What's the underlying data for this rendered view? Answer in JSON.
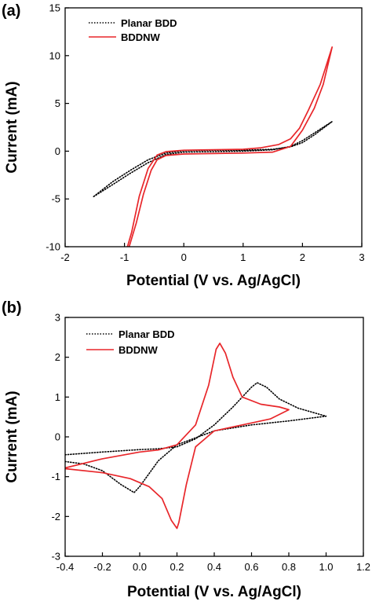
{
  "chart_data": [
    {
      "type": "line",
      "panel_label": "(a)",
      "xlabel": "Potential (V vs. Ag/AgCl)",
      "ylabel": "Current (mA)",
      "xlim": [
        -2,
        3
      ],
      "ylim": [
        -10,
        15
      ],
      "xticks": [
        -2,
        -1,
        0,
        1,
        2,
        3
      ],
      "yticks": [
        -10,
        -5,
        0,
        5,
        10,
        15
      ],
      "legend_position": "top-left",
      "grid": false,
      "series": [
        {
          "name": "Planar BDD",
          "color": "#000000",
          "style": "dotted",
          "points": [
            [
              -1.52,
              -4.75
            ],
            [
              -1.2,
              -3.5
            ],
            [
              -0.9,
              -2.3
            ],
            [
              -0.6,
              -1.2
            ],
            [
              -0.3,
              -0.35
            ],
            [
              0.0,
              -0.1
            ],
            [
              0.5,
              -0.05
            ],
            [
              1.0,
              0.0
            ],
            [
              1.5,
              0.15
            ],
            [
              1.8,
              0.5
            ],
            [
              2.0,
              1.1
            ],
            [
              2.2,
              1.9
            ],
            [
              2.5,
              3.1
            ],
            [
              2.2,
              1.7
            ],
            [
              2.0,
              0.9
            ],
            [
              1.8,
              0.45
            ],
            [
              1.5,
              0.2
            ],
            [
              1.0,
              0.1
            ],
            [
              0.5,
              0.1
            ],
            [
              0.0,
              0.05
            ],
            [
              -0.3,
              -0.2
            ],
            [
              -0.6,
              -0.9
            ],
            [
              -0.9,
              -2.0
            ],
            [
              -1.2,
              -3.2
            ],
            [
              -1.52,
              -4.75
            ]
          ]
        },
        {
          "name": "BDDNW",
          "color": "#e8262a",
          "style": "solid",
          "points": [
            [
              -0.92,
              -10
            ],
            [
              -0.8,
              -7.5
            ],
            [
              -0.68,
              -4.5
            ],
            [
              -0.55,
              -2.0
            ],
            [
              -0.45,
              -0.9
            ],
            [
              -0.3,
              -0.45
            ],
            [
              0.0,
              -0.3
            ],
            [
              0.5,
              -0.25
            ],
            [
              1.0,
              -0.2
            ],
            [
              1.5,
              -0.1
            ],
            [
              1.8,
              0.5
            ],
            [
              2.0,
              2.2
            ],
            [
              2.2,
              4.5
            ],
            [
              2.35,
              7.0
            ],
            [
              2.5,
              10.9
            ],
            [
              2.3,
              7.0
            ],
            [
              2.1,
              4.3
            ],
            [
              1.95,
              2.4
            ],
            [
              1.8,
              1.3
            ],
            [
              1.6,
              0.7
            ],
            [
              1.3,
              0.35
            ],
            [
              1.0,
              0.2
            ],
            [
              0.5,
              0.15
            ],
            [
              0.0,
              0.1
            ],
            [
              -0.3,
              -0.05
            ],
            [
              -0.45,
              -0.4
            ],
            [
              -0.6,
              -1.8
            ],
            [
              -0.75,
              -4.7
            ],
            [
              -0.88,
              -8.5
            ],
            [
              -0.95,
              -10
            ]
          ]
        }
      ]
    },
    {
      "type": "line",
      "panel_label": "(b)",
      "xlabel": "Potential (V vs. Ag/AgCl)",
      "ylabel": "Current (mA)",
      "xlim": [
        -0.4,
        1.2
      ],
      "ylim": [
        -3,
        3
      ],
      "xticks": [
        -0.4,
        -0.2,
        0.0,
        0.2,
        0.4,
        0.6,
        0.8,
        1.0,
        1.2
      ],
      "xtick_labels": [
        "-0.4",
        "-0.2",
        "0.0",
        "0.2",
        "0.4",
        "0.6",
        "0.8",
        "1.0",
        "1.2"
      ],
      "yticks": [
        -3,
        -2,
        -1,
        0,
        1,
        2,
        3
      ],
      "legend_position": "top-left",
      "grid": false,
      "series": [
        {
          "name": "Planar BDD",
          "color": "#000000",
          "style": "dotted",
          "points": [
            [
              -0.4,
              -0.45
            ],
            [
              -0.2,
              -0.38
            ],
            [
              0.0,
              -0.32
            ],
            [
              0.1,
              -0.3
            ],
            [
              0.2,
              -0.25
            ],
            [
              0.3,
              -0.05
            ],
            [
              0.4,
              0.3
            ],
            [
              0.5,
              0.75
            ],
            [
              0.6,
              1.25
            ],
            [
              0.63,
              1.36
            ],
            [
              0.68,
              1.25
            ],
            [
              0.75,
              0.95
            ],
            [
              0.85,
              0.72
            ],
            [
              1.0,
              0.52
            ],
            [
              0.8,
              0.4
            ],
            [
              0.6,
              0.3
            ],
            [
              0.4,
              0.15
            ],
            [
              0.2,
              -0.2
            ],
            [
              0.1,
              -0.6
            ],
            [
              0.0,
              -1.25
            ],
            [
              -0.03,
              -1.4
            ],
            [
              -0.1,
              -1.2
            ],
            [
              -0.2,
              -0.85
            ],
            [
              -0.3,
              -0.68
            ],
            [
              -0.4,
              -0.62
            ]
          ]
        },
        {
          "name": "BDDNW",
          "color": "#e8262a",
          "style": "solid",
          "points": [
            [
              -0.4,
              -0.78
            ],
            [
              -0.2,
              -0.55
            ],
            [
              0.0,
              -0.38
            ],
            [
              0.1,
              -0.33
            ],
            [
              0.2,
              -0.2
            ],
            [
              0.3,
              0.3
            ],
            [
              0.37,
              1.3
            ],
            [
              0.41,
              2.2
            ],
            [
              0.43,
              2.35
            ],
            [
              0.46,
              2.1
            ],
            [
              0.5,
              1.5
            ],
            [
              0.55,
              1.0
            ],
            [
              0.65,
              0.82
            ],
            [
              0.75,
              0.75
            ],
            [
              0.8,
              0.68
            ],
            [
              0.7,
              0.45
            ],
            [
              0.6,
              0.35
            ],
            [
              0.5,
              0.25
            ],
            [
              0.4,
              0.15
            ],
            [
              0.3,
              -0.25
            ],
            [
              0.25,
              -1.2
            ],
            [
              0.21,
              -2.15
            ],
            [
              0.2,
              -2.3
            ],
            [
              0.17,
              -2.1
            ],
            [
              0.12,
              -1.55
            ],
            [
              0.05,
              -1.25
            ],
            [
              -0.05,
              -1.05
            ],
            [
              -0.2,
              -0.9
            ],
            [
              -0.4,
              -0.8
            ]
          ]
        }
      ]
    }
  ]
}
